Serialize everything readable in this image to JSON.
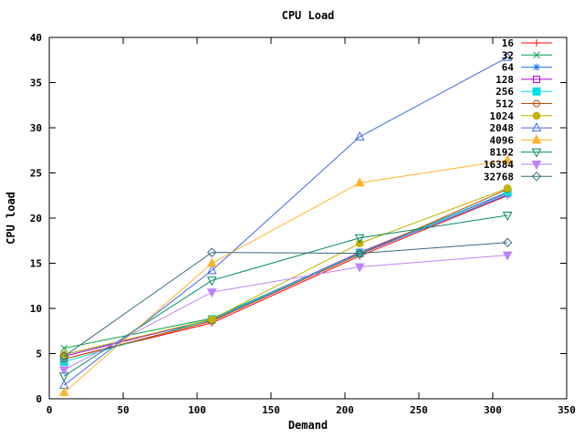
{
  "window": {
    "background": "#ffffff",
    "border_color": "#000000"
  },
  "chart_data": {
    "type": "line",
    "title": "CPU Load",
    "xlabel": "Demand",
    "ylabel": "CPU load",
    "xlim": [
      0,
      350
    ],
    "ylim": [
      0,
      40
    ],
    "x_ticks": [
      0,
      50,
      100,
      150,
      200,
      250,
      300,
      350
    ],
    "y_ticks": [
      0,
      5,
      10,
      15,
      20,
      25,
      30,
      35,
      40
    ],
    "grid": false,
    "legend_position": "top-right-inside",
    "x": [
      10,
      110,
      210,
      310
    ],
    "series": [
      {
        "name": "16",
        "color": "#ff0000",
        "marker": "plus-marker",
        "values": [
          4.4,
          8.4,
          15.8,
          22.5
        ]
      },
      {
        "name": "32",
        "color": "#00a040",
        "marker": "cross-marker",
        "values": [
          5.6,
          8.9,
          16.1,
          22.8
        ]
      },
      {
        "name": "64",
        "color": "#1874ff",
        "marker": "asterisk-marker",
        "values": [
          4.9,
          8.7,
          16.0,
          22.6
        ]
      },
      {
        "name": "128",
        "color": "#b000d0",
        "marker": "open-square-marker",
        "values": [
          4.7,
          8.8,
          16.2,
          22.8
        ]
      },
      {
        "name": "256",
        "color": "#00e0e0",
        "marker": "filled-square-marker",
        "values": [
          4.1,
          8.8,
          16.1,
          22.9
        ]
      },
      {
        "name": "512",
        "color": "#bc4a00",
        "marker": "open-circle-marker",
        "values": [
          4.4,
          8.6,
          16.0,
          23.2
        ]
      },
      {
        "name": "1024",
        "color": "#c4b000",
        "marker": "filled-circle-marker",
        "values": [
          4.9,
          8.8,
          17.2,
          23.3
        ]
      },
      {
        "name": "2048",
        "color": "#4169e1",
        "marker": "open-triangle-up-marker",
        "values": [
          1.5,
          14.2,
          29.0,
          37.8
        ]
      },
      {
        "name": "4096",
        "color": "#ffb428",
        "marker": "filled-triangle-up-marker",
        "values": [
          0.7,
          15.0,
          23.9,
          26.4
        ]
      },
      {
        "name": "8192",
        "color": "#008a60",
        "marker": "open-triangle-down-marker",
        "values": [
          2.5,
          13.1,
          17.8,
          20.3
        ]
      },
      {
        "name": "16384",
        "color": "#bd82f8",
        "marker": "filled-triangle-down-marker",
        "values": [
          3.2,
          11.8,
          14.6,
          15.9
        ]
      },
      {
        "name": "32768",
        "color": "#336b80",
        "marker": "open-diamond-marker",
        "values": [
          4.7,
          16.2,
          16.1,
          17.3
        ]
      }
    ]
  }
}
